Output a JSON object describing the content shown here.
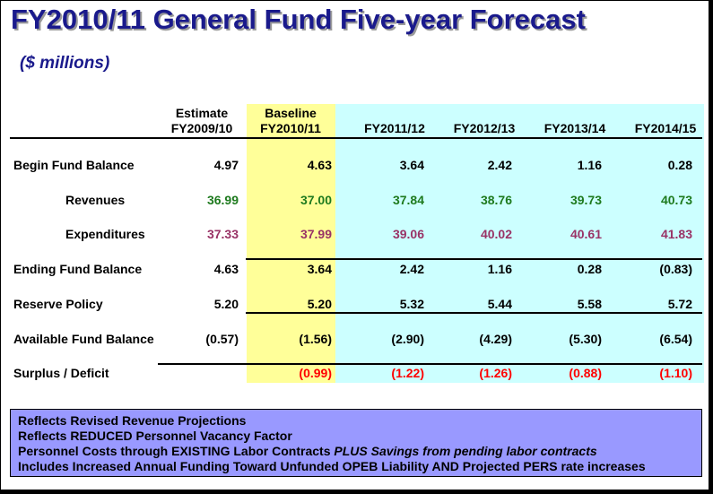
{
  "title": "FY2010/11 General Fund Five-year Forecast",
  "subtitle": "($ millions)",
  "columns": [
    {
      "line1": "Estimate",
      "line2": "FY2009/10"
    },
    {
      "line1": "Baseline",
      "line2": "FY2010/11"
    },
    {
      "line1": "",
      "line2": "FY2011/12"
    },
    {
      "line1": "",
      "line2": "FY2012/13"
    },
    {
      "line1": "",
      "line2": "FY2013/14"
    },
    {
      "line1": "",
      "line2": "FY2014/15"
    }
  ],
  "rows": [
    {
      "label": "Begin Fund Balance",
      "values": [
        "4.97",
        "4.63",
        "3.64",
        "2.42",
        "1.16",
        "0.28"
      ],
      "color": "black"
    },
    {
      "label": "Revenues",
      "values": [
        "36.99",
        "37.00",
        "37.84",
        "38.76",
        "39.73",
        "40.73"
      ],
      "color": "green"
    },
    {
      "label": "Expenditures",
      "values": [
        "37.33",
        "37.99",
        "39.06",
        "40.02",
        "40.61",
        "41.83"
      ],
      "color": "maroon"
    },
    {
      "label": "Ending Fund Balance",
      "values": [
        "4.63",
        "3.64",
        "2.42",
        "1.16",
        "0.28",
        "(0.83)"
      ],
      "color": "black"
    },
    {
      "label": "Reserve Policy",
      "values": [
        "5.20",
        "5.20",
        "5.32",
        "5.44",
        "5.58",
        "5.72"
      ],
      "color": "black"
    },
    {
      "label": "Available Fund Balance",
      "values": [
        "(0.57)",
        "(1.56)",
        "(2.90)",
        "(4.29)",
        "(5.30)",
        "(6.54)"
      ],
      "color": "black"
    },
    {
      "label": "Surplus / Deficit",
      "values": [
        "",
        "(0.99)",
        "(1.22)",
        "(1.26)",
        "(0.88)",
        "(1.10)"
      ],
      "color": "red"
    }
  ],
  "notes": {
    "line1": "Reflects Revised Revenue Projections",
    "line2": "Reflects REDUCED Personnel Vacancy Factor",
    "line3a": "Personnel Costs through EXISTING Labor Contracts ",
    "line3b": "PLUS Savings from pending labor contracts",
    "line4": "Includes Increased Annual Funding Toward Unfunded OPEB Liability AND Projected PERS rate increases"
  }
}
